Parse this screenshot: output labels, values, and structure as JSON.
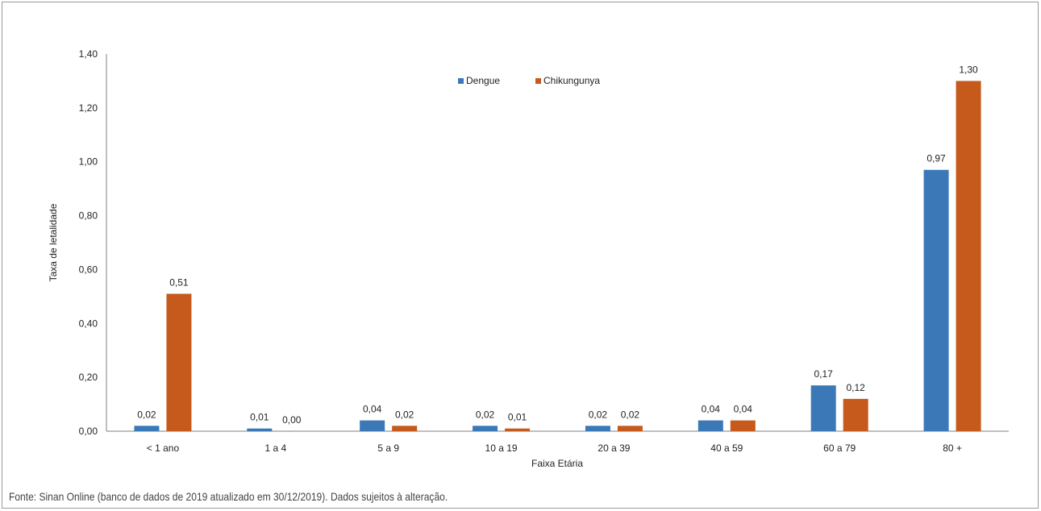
{
  "chart_data": {
    "type": "bar",
    "title": "",
    "xlabel": "Faixa Etária",
    "ylabel": "Taxa de letalidade",
    "ylim": [
      0,
      1.4
    ],
    "ytick_step": 0.2,
    "yticks": [
      "0,00",
      "0,20",
      "0,40",
      "0,60",
      "0,80",
      "1,00",
      "1,20",
      "1,40"
    ],
    "grid": false,
    "legend_position": "top-center",
    "categories": [
      "< 1 ano",
      "1 a 4",
      "5 a 9",
      "10 a 19",
      "20 a 39",
      "40 a 59",
      "60 a 79",
      "80 +"
    ],
    "series": [
      {
        "name": "Dengue",
        "color": "#3a78b8",
        "values": [
          0.02,
          0.01,
          0.04,
          0.02,
          0.02,
          0.04,
          0.17,
          0.97
        ],
        "labels": [
          "0,02",
          "0,01",
          "0,04",
          "0,02",
          "0,02",
          "0,04",
          "0,17",
          "0,97"
        ]
      },
      {
        "name": "Chikungunya",
        "color": "#c55a1c",
        "values": [
          0.51,
          0.0,
          0.02,
          0.01,
          0.02,
          0.04,
          0.12,
          1.3
        ],
        "labels": [
          "0,51",
          "0,00",
          "0,02",
          "0,01",
          "0,02",
          "0,04",
          "0,12",
          "1,30"
        ]
      }
    ]
  },
  "source_note": "Fonte: Sinan Online (banco de dados de 2019 atualizado em 30/12/2019). Dados sujeitos à alteração."
}
